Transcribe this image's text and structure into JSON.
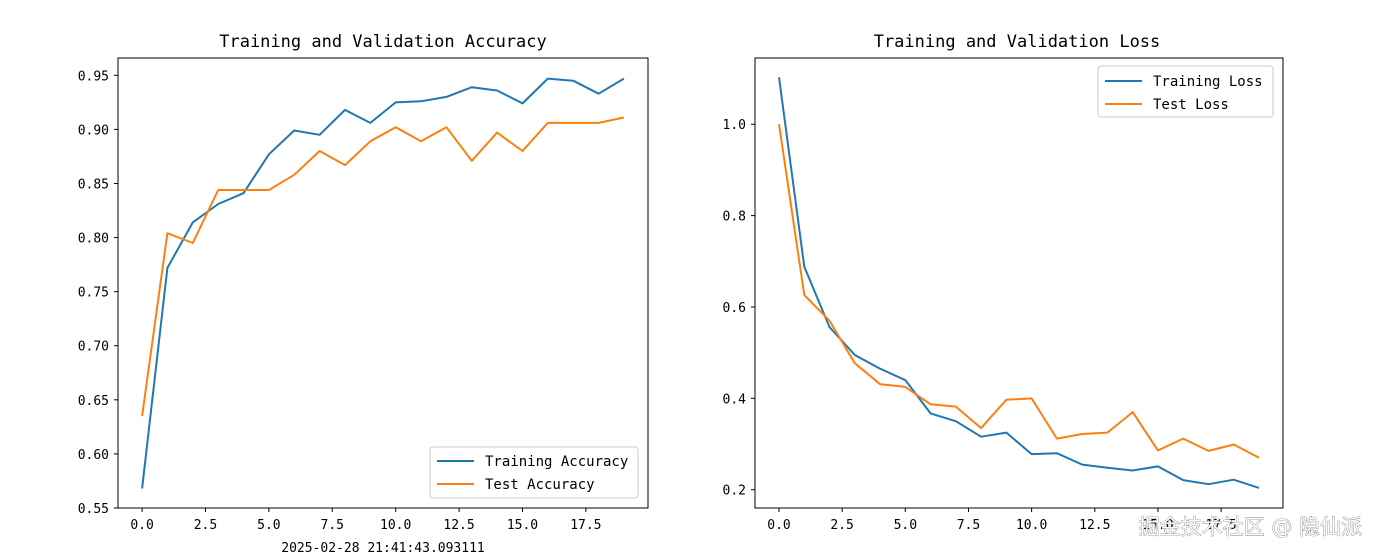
{
  "chart_data": [
    {
      "type": "line",
      "title": "Training and Validation Accuracy",
      "xlabel": "",
      "ylabel": "",
      "xlim": [
        -0.95,
        19.95
      ],
      "ylim": [
        0.55,
        0.966
      ],
      "x_ticks": [
        0.0,
        2.5,
        5.0,
        7.5,
        10.0,
        12.5,
        15.0,
        17.5
      ],
      "x_tick_labels": [
        "0.0",
        "2.5",
        "5.0",
        "7.5",
        "10.0",
        "12.5",
        "15.0",
        "17.5"
      ],
      "y_ticks": [
        0.55,
        0.6,
        0.65,
        0.7,
        0.75,
        0.8,
        0.85,
        0.9,
        0.95
      ],
      "y_tick_labels": [
        "0.55",
        "0.60",
        "0.65",
        "0.70",
        "0.75",
        "0.80",
        "0.85",
        "0.90",
        "0.95"
      ],
      "legend_position": "lower-right",
      "x": [
        0,
        1,
        2,
        3,
        4,
        5,
        6,
        7,
        8,
        9,
        10,
        11,
        12,
        13,
        14,
        15,
        16,
        17,
        18,
        19
      ],
      "series": [
        {
          "name": "Training Accuracy",
          "color": "#1f77b4",
          "values": [
            0.568,
            0.772,
            0.814,
            0.831,
            0.841,
            0.877,
            0.899,
            0.895,
            0.918,
            0.906,
            0.925,
            0.926,
            0.93,
            0.939,
            0.936,
            0.924,
            0.947,
            0.945,
            0.933,
            0.947
          ]
        },
        {
          "name": "Test Accuracy",
          "color": "#ff7f0e",
          "values": [
            0.635,
            0.804,
            0.795,
            0.844,
            0.844,
            0.844,
            0.858,
            0.88,
            0.867,
            0.889,
            0.902,
            0.889,
            0.902,
            0.871,
            0.897,
            0.88,
            0.906,
            0.906,
            0.906,
            0.911
          ]
        }
      ]
    },
    {
      "type": "line",
      "title": "Training and Validation Loss",
      "xlabel": "",
      "ylabel": "",
      "xlim": [
        -0.95,
        19.95
      ],
      "ylim": [
        0.16,
        1.145
      ],
      "x_ticks": [
        0.0,
        2.5,
        5.0,
        7.5,
        10.0,
        12.5,
        15.0,
        17.5
      ],
      "x_tick_labels": [
        "0.0",
        "2.5",
        "5.0",
        "7.5",
        "10.0",
        "12.5",
        "15.0",
        "17.5"
      ],
      "y_ticks": [
        0.2,
        0.4,
        0.6,
        0.8,
        1.0
      ],
      "y_tick_labels": [
        "0.2",
        "0.4",
        "0.6",
        "0.8",
        "1.0"
      ],
      "legend_position": "upper-right",
      "x": [
        0,
        1,
        2,
        3,
        4,
        5,
        6,
        7,
        8,
        9,
        10,
        11,
        12,
        13,
        14,
        15,
        16,
        17,
        18,
        19
      ],
      "series": [
        {
          "name": "Training Loss",
          "color": "#1f77b4",
          "values": [
            1.103,
            0.688,
            0.556,
            0.495,
            0.465,
            0.44,
            0.367,
            0.35,
            0.316,
            0.325,
            0.278,
            0.28,
            0.255,
            0.248,
            0.242,
            0.251,
            0.221,
            0.212,
            0.222,
            0.204
          ]
        },
        {
          "name": "Test Loss",
          "color": "#ff7f0e",
          "values": [
            1.0,
            0.626,
            0.57,
            0.477,
            0.431,
            0.425,
            0.387,
            0.382,
            0.335,
            0.397,
            0.4,
            0.312,
            0.322,
            0.325,
            0.37,
            0.286,
            0.312,
            0.285,
            0.299,
            0.27
          ]
        }
      ]
    }
  ],
  "timestamp": "2025-02-28 21:41:43.093111",
  "watermark": "掘金技术社区 @ 隐仙派"
}
